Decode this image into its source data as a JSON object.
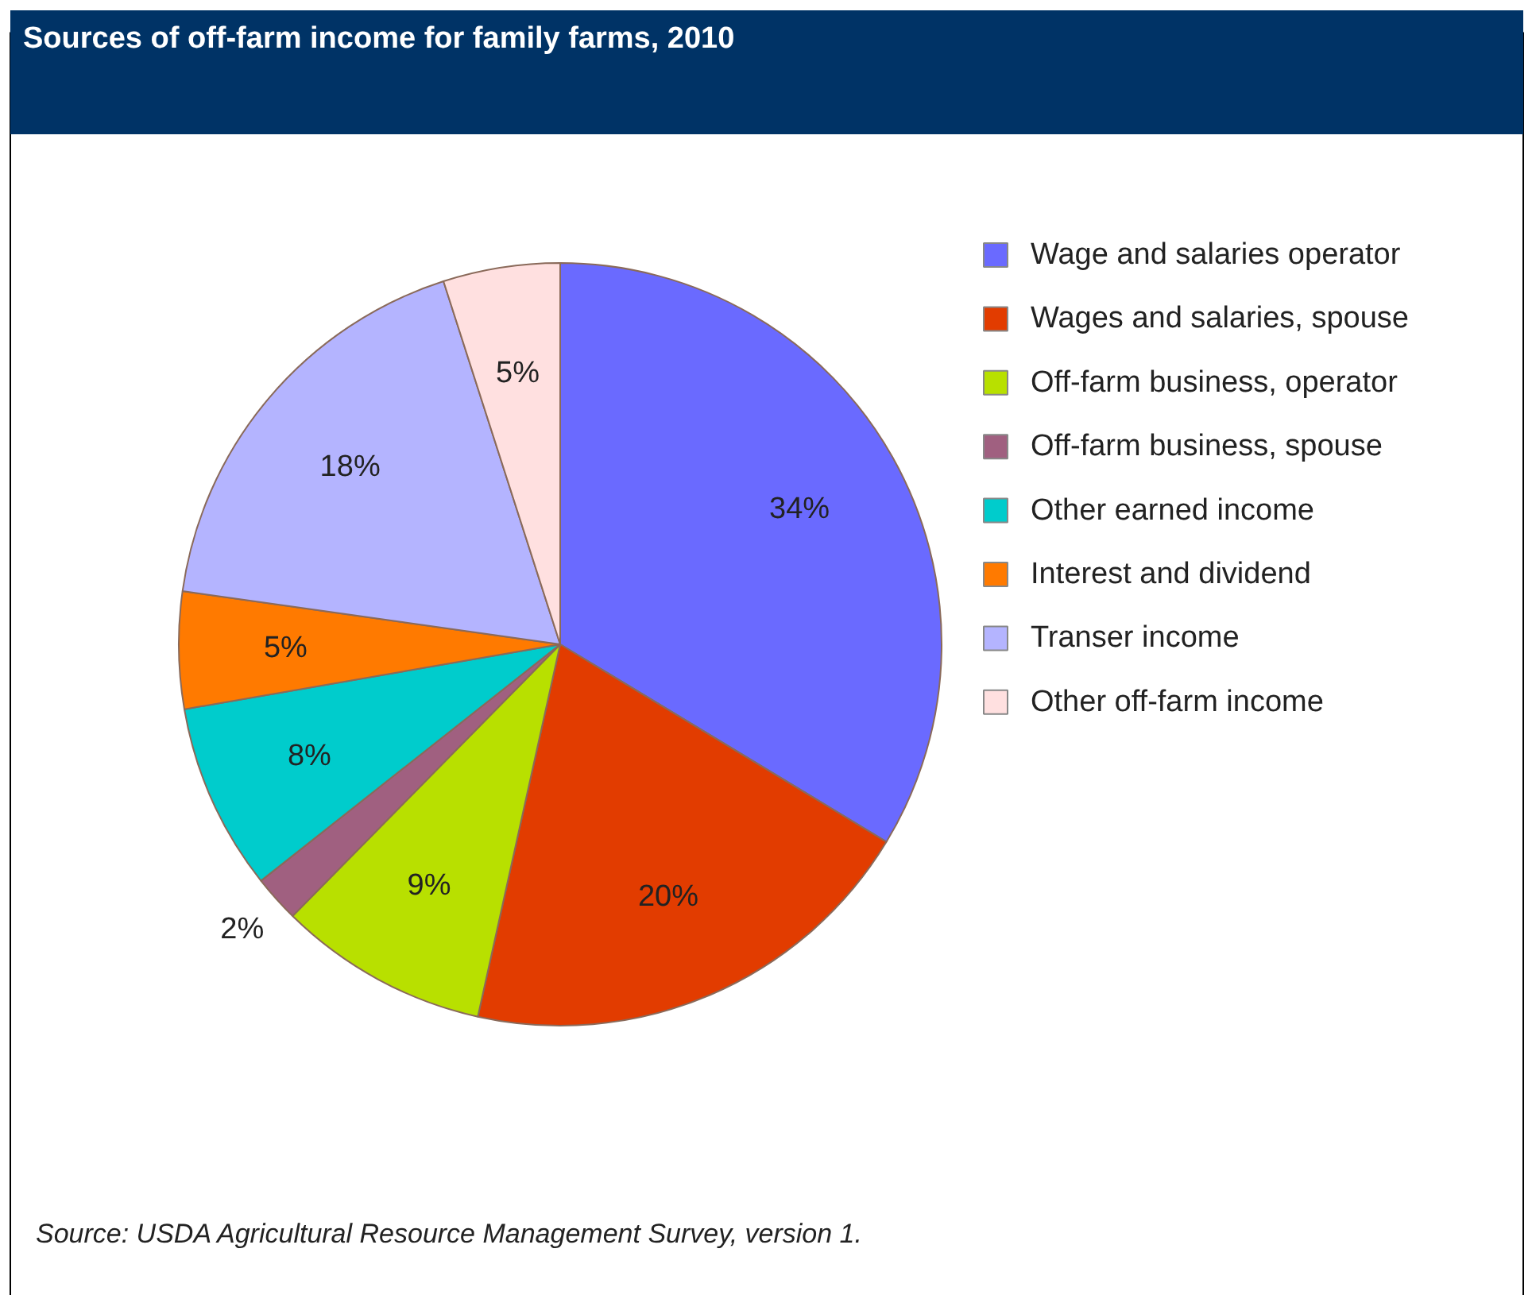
{
  "chart_data": {
    "type": "pie",
    "title": "Sources of off-farm income for family farms, 2010",
    "categories": [
      "Wage and salaries operator",
      "Wages and salaries, spouse",
      "Off-farm business, operator",
      "Off-farm business, spouse",
      "Other earned income",
      "Interest and dividend",
      "Transer income",
      "Other off-farm income"
    ],
    "values": [
      34,
      20,
      9,
      2,
      8,
      5,
      18,
      5
    ],
    "value_labels": [
      "34%",
      "20%",
      "9%",
      "2%",
      "8%",
      "5%",
      "18%",
      "5%"
    ],
    "colors": [
      "#6a6aff",
      "#e23c00",
      "#b8e000",
      "#a06080",
      "#00cccc",
      "#ff7a00",
      "#b4b4ff",
      "#ffe0e0"
    ],
    "legend": "right",
    "annotations": [
      "Source: USDA Agricultural Resource Management Survey, version 1."
    ]
  }
}
